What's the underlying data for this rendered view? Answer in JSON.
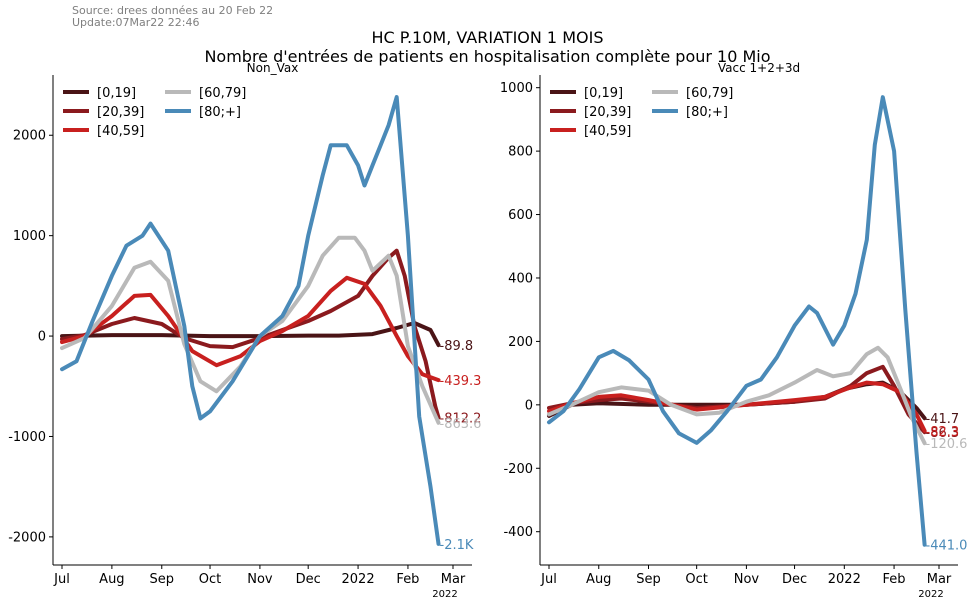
{
  "source_line": "Source: drees données au 20 Feb 22",
  "update_line": "Update:07Mar22 22:46",
  "title_line1": "HC P.10M, VARIATION 1 MOIS",
  "title_line2": "Nombre d'entrées de patients en hospitalisation complète pour 10 Mio",
  "colors": {
    "[0,19]": "#4a1416",
    "[20,39]": "#8b1a1e",
    "[40,59]": "#c8201f",
    "[60,79]": "#b9b9b9",
    "[80;+]": "#4a8ab8"
  },
  "chart_data": [
    {
      "type": "line",
      "title": "Non_Vax",
      "x_ticks": [
        "Jul",
        "Aug",
        "Sep",
        "Oct",
        "Nov",
        "Dec",
        "2022",
        "Feb",
        "Mar"
      ],
      "x_year_label": "2022",
      "x_range": [
        "2021-07-01",
        "2022-03-01"
      ],
      "ylim": [
        -2280,
        2600
      ],
      "y_ticks": [
        -2000,
        -1000,
        0,
        1000,
        2000
      ],
      "y_tick_labels": [
        "-2000",
        "-1000",
        "0",
        "1000",
        "2000"
      ],
      "legend": [
        "[0,19]",
        "[20,39]",
        "[40,59]",
        "[60,79]",
        "[80;+]"
      ],
      "legend_position": "upper-left",
      "grid": false,
      "series": [
        {
          "name": "[0,19]",
          "end_label": "-89.8",
          "x": [
            "2021-07-01",
            "2021-08-01",
            "2021-09-01",
            "2021-10-01",
            "2021-11-01",
            "2021-12-01",
            "2021-12-20",
            "2022-01-10",
            "2022-01-25",
            "2022-02-05",
            "2022-02-15",
            "2022-02-20"
          ],
          "y": [
            0,
            10,
            10,
            0,
            0,
            5,
            5,
            20,
            80,
            130,
            60,
            -90
          ]
        },
        {
          "name": "[20,39]",
          "end_label": "-812.2",
          "x": [
            "2021-07-01",
            "2021-07-15",
            "2021-08-01",
            "2021-08-15",
            "2021-09-01",
            "2021-09-15",
            "2021-10-01",
            "2021-10-15",
            "2021-11-01",
            "2021-11-15",
            "2021-12-01",
            "2021-12-15",
            "2022-01-01",
            "2022-01-10",
            "2022-01-20",
            "2022-01-25",
            "2022-01-30",
            "2022-02-05",
            "2022-02-12",
            "2022-02-18",
            "2022-02-20"
          ],
          "y": [
            -30,
            10,
            120,
            180,
            120,
            -20,
            -100,
            -110,
            -20,
            60,
            150,
            250,
            400,
            600,
            780,
            850,
            600,
            100,
            -250,
            -700,
            -812
          ]
        },
        {
          "name": "[40,59]",
          "end_label": "-439.3",
          "x": [
            "2021-07-01",
            "2021-07-15",
            "2021-08-01",
            "2021-08-15",
            "2021-08-25",
            "2021-09-05",
            "2021-09-20",
            "2021-10-05",
            "2021-10-20",
            "2021-11-01",
            "2021-11-15",
            "2021-12-01",
            "2021-12-15",
            "2021-12-25",
            "2022-01-05",
            "2022-01-15",
            "2022-01-25",
            "2022-02-01",
            "2022-02-10",
            "2022-02-20"
          ],
          "y": [
            -60,
            0,
            200,
            400,
            410,
            200,
            -150,
            -290,
            -200,
            -50,
            50,
            200,
            450,
            580,
            520,
            300,
            0,
            -200,
            -380,
            -439
          ]
        },
        {
          "name": "[60,79]",
          "end_label": "-863.6",
          "x": [
            "2021-07-01",
            "2021-07-15",
            "2021-08-01",
            "2021-08-15",
            "2021-08-25",
            "2021-09-05",
            "2021-09-15",
            "2021-09-25",
            "2021-10-05",
            "2021-10-20",
            "2021-11-01",
            "2021-11-15",
            "2021-12-01",
            "2021-12-10",
            "2021-12-20",
            "2021-12-30",
            "2022-01-05",
            "2022-01-10",
            "2022-01-20",
            "2022-01-25",
            "2022-02-01",
            "2022-02-10",
            "2022-02-20"
          ],
          "y": [
            -120,
            -20,
            300,
            680,
            740,
            550,
            -80,
            -450,
            -550,
            -300,
            0,
            150,
            500,
            800,
            980,
            980,
            850,
            650,
            800,
            600,
            -100,
            -500,
            -864
          ]
        },
        {
          "name": "[80;+]",
          "end_label": "-2.1K",
          "x": [
            "2021-07-01",
            "2021-07-10",
            "2021-07-20",
            "2021-08-01",
            "2021-08-10",
            "2021-08-20",
            "2021-08-25",
            "2021-09-05",
            "2021-09-15",
            "2021-09-20",
            "2021-09-25",
            "2021-10-01",
            "2021-10-15",
            "2021-11-01",
            "2021-11-15",
            "2021-11-25",
            "2021-12-01",
            "2021-12-10",
            "2021-12-15",
            "2021-12-25",
            "2022-01-01",
            "2022-01-05",
            "2022-01-10",
            "2022-01-15",
            "2022-01-20",
            "2022-01-25",
            "2022-02-01",
            "2022-02-08",
            "2022-02-15",
            "2022-02-20"
          ],
          "y": [
            -330,
            -250,
            150,
            600,
            900,
            1000,
            1120,
            850,
            100,
            -500,
            -820,
            -750,
            -450,
            0,
            200,
            500,
            1000,
            1600,
            1900,
            1900,
            1700,
            1500,
            1700,
            1900,
            2100,
            2380,
            1000,
            -800,
            -1500,
            -2070
          ]
        }
      ]
    },
    {
      "type": "line",
      "title": "Vacc 1+2+3d",
      "x_ticks": [
        "Jul",
        "Aug",
        "Sep",
        "Oct",
        "Nov",
        "Dec",
        "2022",
        "Feb",
        "Mar"
      ],
      "x_year_label": "2022",
      "x_range": [
        "2021-07-01",
        "2022-03-01"
      ],
      "ylim": [
        -505,
        1040
      ],
      "y_ticks": [
        -400,
        -200,
        0,
        200,
        400,
        600,
        800,
        1000
      ],
      "y_tick_labels": [
        "-400",
        "-200",
        "0",
        "200",
        "400",
        "600",
        "800",
        "1000"
      ],
      "legend": [
        "[0,19]",
        "[20,39]",
        "[40,59]",
        "[60,79]",
        "[80;+]"
      ],
      "legend_position": "upper-left",
      "grid": false,
      "series": [
        {
          "name": "[0,19]",
          "end_label": "-41.7",
          "x": [
            "2021-07-01",
            "2021-07-15",
            "2021-08-01",
            "2021-09-01",
            "2021-10-01",
            "2021-11-01",
            "2021-12-01",
            "2021-12-20",
            "2022-01-01",
            "2022-01-15",
            "2022-01-25",
            "2022-02-05",
            "2022-02-15",
            "2022-02-20"
          ],
          "y": [
            -35,
            0,
            5,
            0,
            0,
            0,
            10,
            25,
            50,
            65,
            70,
            40,
            -10,
            -42
          ]
        },
        {
          "name": "[20,39]",
          "end_label": "-86.3",
          "x": [
            "2021-07-01",
            "2021-07-15",
            "2021-08-01",
            "2021-08-15",
            "2021-09-01",
            "2021-10-01",
            "2021-11-01",
            "2021-12-01",
            "2021-12-20",
            "2022-01-05",
            "2022-01-15",
            "2022-01-25",
            "2022-02-01",
            "2022-02-10",
            "2022-02-20"
          ],
          "y": [
            -10,
            5,
            15,
            20,
            10,
            -10,
            0,
            10,
            20,
            60,
            100,
            120,
            60,
            -30,
            -86
          ]
        },
        {
          "name": "[40,59]",
          "end_label": "-82.3",
          "x": [
            "2021-07-01",
            "2021-07-15",
            "2021-08-01",
            "2021-08-15",
            "2021-09-01",
            "2021-10-01",
            "2021-11-01",
            "2021-12-01",
            "2021-12-20",
            "2022-01-05",
            "2022-01-15",
            "2022-01-25",
            "2022-02-05",
            "2022-02-15",
            "2022-02-20"
          ],
          "y": [
            -20,
            5,
            25,
            30,
            15,
            -15,
            0,
            15,
            25,
            55,
            70,
            65,
            40,
            -30,
            -82
          ]
        },
        {
          "name": "[60,79]",
          "end_label": "-120.6",
          "x": [
            "2021-07-01",
            "2021-07-15",
            "2021-08-01",
            "2021-08-15",
            "2021-09-01",
            "2021-09-15",
            "2021-10-01",
            "2021-10-15",
            "2021-11-01",
            "2021-11-15",
            "2021-12-01",
            "2021-12-15",
            "2021-12-25",
            "2022-01-05",
            "2022-01-15",
            "2022-01-22",
            "2022-01-28",
            "2022-02-05",
            "2022-02-12",
            "2022-02-20"
          ],
          "y": [
            -30,
            0,
            40,
            55,
            45,
            0,
            -30,
            -25,
            10,
            30,
            70,
            110,
            90,
            100,
            160,
            180,
            150,
            50,
            -40,
            -121
          ]
        },
        {
          "name": "[80;+]",
          "end_label": "-441.0",
          "x": [
            "2021-07-01",
            "2021-07-10",
            "2021-07-20",
            "2021-08-01",
            "2021-08-10",
            "2021-08-20",
            "2021-09-01",
            "2021-09-10",
            "2021-09-20",
            "2021-10-01",
            "2021-10-10",
            "2021-10-20",
            "2021-11-01",
            "2021-11-10",
            "2021-11-20",
            "2021-12-01",
            "2021-12-10",
            "2021-12-15",
            "2021-12-25",
            "2022-01-01",
            "2022-01-08",
            "2022-01-15",
            "2022-01-20",
            "2022-01-25",
            "2022-02-01",
            "2022-02-08",
            "2022-02-15",
            "2022-02-20"
          ],
          "y": [
            -55,
            -20,
            50,
            150,
            170,
            140,
            80,
            -20,
            -90,
            -120,
            -80,
            -20,
            60,
            80,
            150,
            250,
            310,
            290,
            190,
            250,
            350,
            520,
            820,
            970,
            800,
            300,
            -150,
            -441
          ]
        }
      ]
    }
  ]
}
